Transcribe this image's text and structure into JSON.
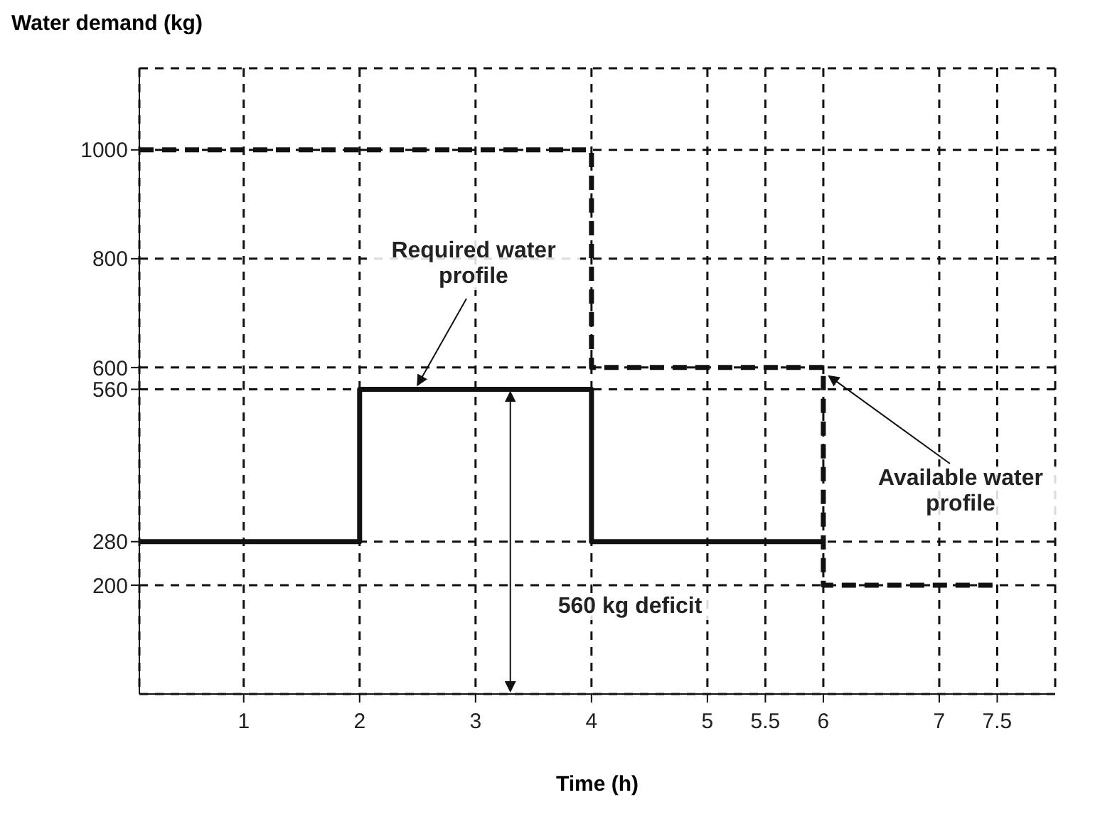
{
  "chart_data": {
    "type": "step",
    "ylabel": "Water demand (kg)",
    "xlabel": "Time (h)",
    "xlim": [
      0.1,
      8
    ],
    "xticks": [
      1,
      2,
      3,
      4,
      5,
      5.5,
      6,
      7,
      7.5
    ],
    "ylim": [
      0,
      1150
    ],
    "yticks": [
      200,
      280,
      560,
      600,
      800,
      1000
    ],
    "grid": true,
    "legend": false,
    "marker": "none",
    "series": [
      {
        "color": "#111111",
        "x": [
          0.1,
          2,
          4,
          6
        ],
        "values": [
          280,
          560,
          280,
          280
        ],
        "line_style": "solid"
      },
      {
        "color": "#111111",
        "x": [
          0.1,
          4,
          6,
          7.5
        ],
        "values": [
          1000,
          600,
          200,
          200
        ],
        "line_style": "dashed"
      }
    ],
    "annotations": [
      {
        "text": "Required water profile",
        "x": 2.5,
        "y": 560
      },
      {
        "text": "Available water profile",
        "x": 6,
        "y": 600
      },
      "560 kg deficit"
    ]
  }
}
